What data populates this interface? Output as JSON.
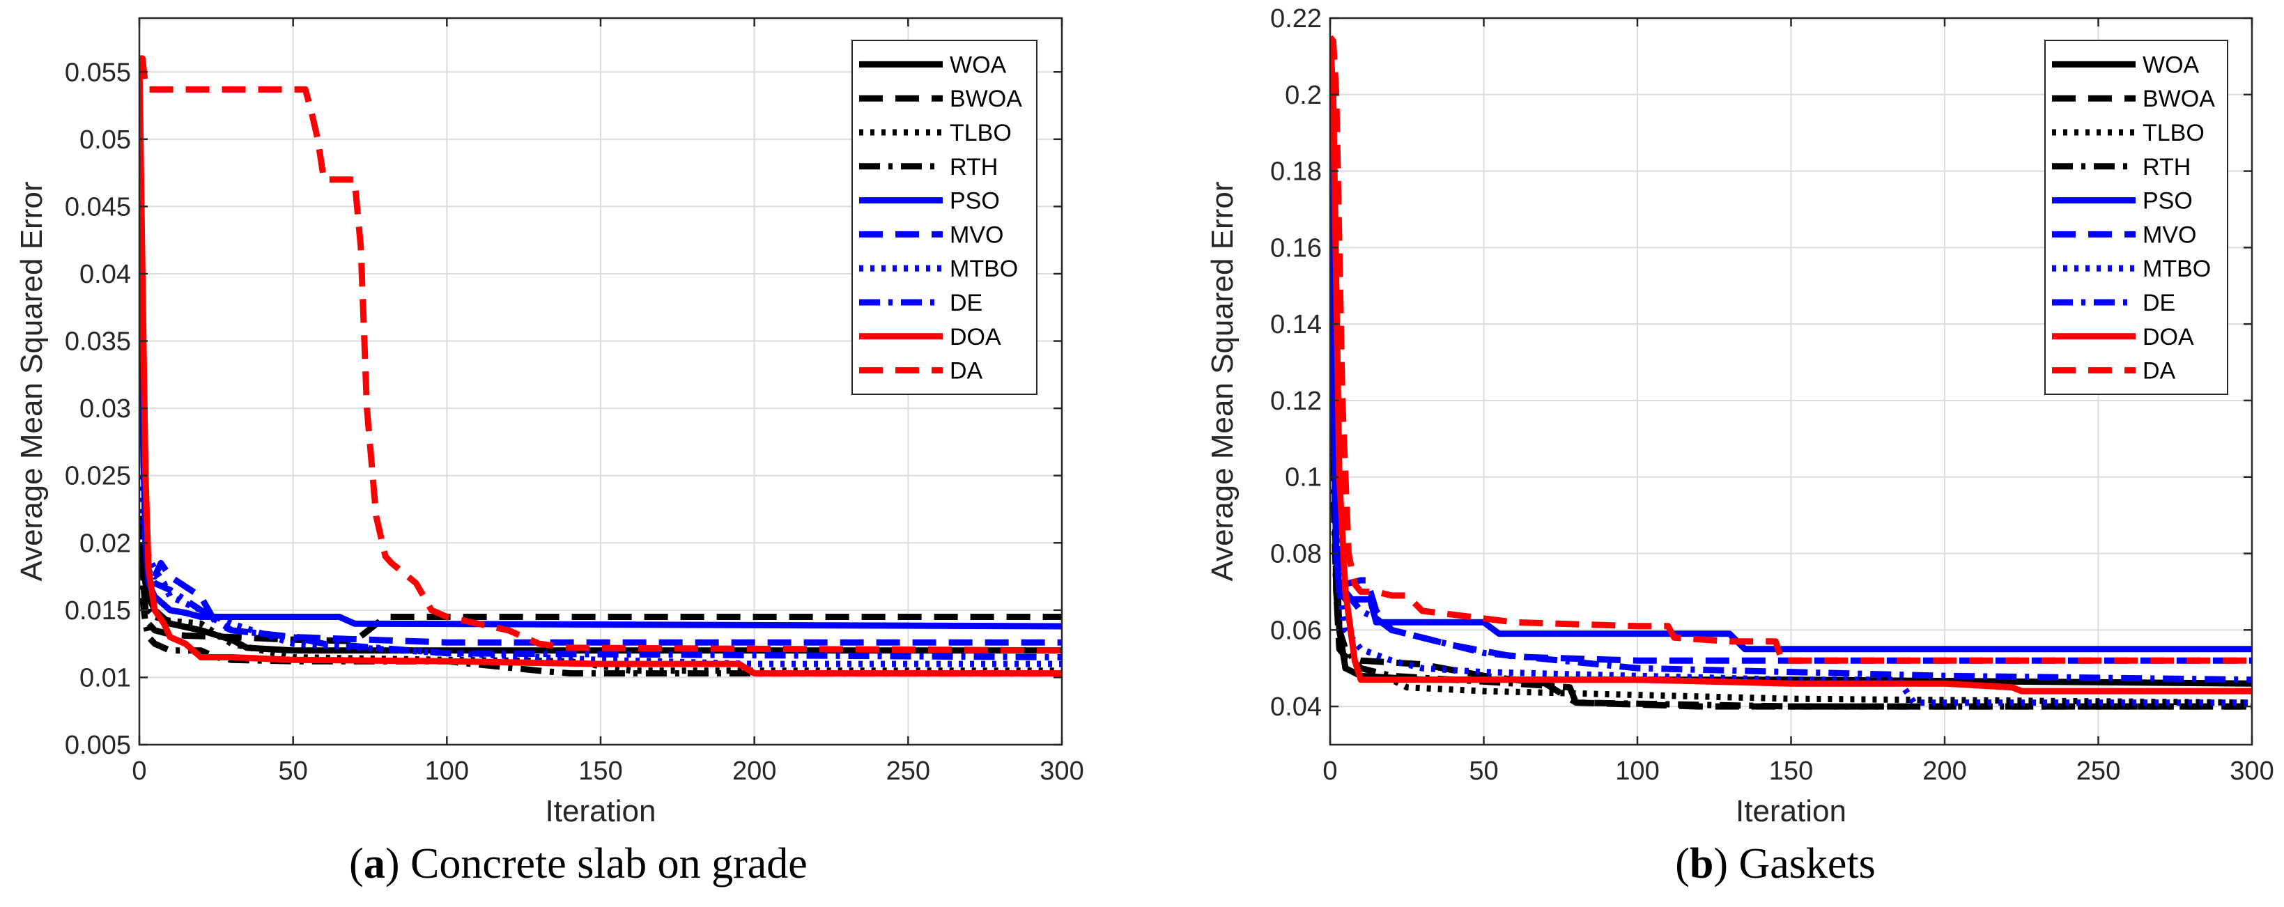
{
  "chart_data": [
    {
      "type": "line",
      "caption_letter": "a",
      "caption_open": "(",
      "caption_close": ")",
      "caption_text": " Concrete slab on grade",
      "xlabel": "Iteration",
      "ylabel": "Average Mean Squared Error",
      "xlim": [
        0,
        300
      ],
      "ylim": [
        0.005,
        0.059
      ],
      "xticks": [
        0,
        50,
        100,
        150,
        200,
        250,
        300
      ],
      "xtick_labels": [
        "0",
        "50",
        "100",
        "150",
        "200",
        "250",
        "300"
      ],
      "yticks": [
        0.005,
        0.01,
        0.015,
        0.02,
        0.025,
        0.03,
        0.035,
        0.04,
        0.045,
        0.05,
        0.055
      ],
      "ytick_labels": [
        "0.005",
        "0.01",
        "0.015",
        "0.02",
        "0.025",
        "0.03",
        "0.035",
        "0.04",
        "0.045",
        "0.05",
        "0.055"
      ],
      "grid": true,
      "legend_position": "top-right",
      "series": [
        {
          "name": "WOA",
          "color": "#000000",
          "dash": "solid",
          "x": [
            0,
            2,
            3,
            5,
            10,
            20,
            30,
            35,
            50,
            100,
            150,
            300
          ],
          "y": [
            0.02,
            0.017,
            0.016,
            0.015,
            0.014,
            0.0135,
            0.0128,
            0.0122,
            0.012,
            0.012,
            0.012,
            0.012
          ]
        },
        {
          "name": "BWOA",
          "color": "#000000",
          "dash": "dash",
          "x": [
            0,
            1,
            2,
            3,
            5,
            10,
            15,
            30,
            50,
            70,
            80,
            300
          ],
          "y": [
            0.022,
            0.018,
            0.015,
            0.014,
            0.0135,
            0.0132,
            0.0131,
            0.013,
            0.0128,
            0.0127,
            0.0145,
            0.0145
          ]
        },
        {
          "name": "TLBO",
          "color": "#000000",
          "dash": "dot",
          "x": [
            0,
            2,
            3,
            5,
            10,
            20,
            30,
            50,
            100,
            140,
            160,
            300
          ],
          "y": [
            0.02,
            0.016,
            0.015,
            0.0145,
            0.0142,
            0.014,
            0.0125,
            0.0115,
            0.0113,
            0.0112,
            0.0105,
            0.0105
          ]
        },
        {
          "name": "RTH",
          "color": "#000000",
          "dash": "dashdot",
          "x": [
            0,
            1,
            2,
            3,
            5,
            10,
            20,
            25,
            30,
            50,
            100,
            130,
            140,
            300
          ],
          "y": [
            0.019,
            0.016,
            0.014,
            0.013,
            0.0125,
            0.012,
            0.012,
            0.0115,
            0.0113,
            0.0112,
            0.0112,
            0.0105,
            0.0103,
            0.0103
          ]
        },
        {
          "name": "PSO",
          "color": "#0000ff",
          "dash": "solid",
          "x": [
            0,
            1,
            2,
            3,
            5,
            10,
            15,
            20,
            50,
            65,
            70,
            300
          ],
          "y": [
            0.05,
            0.03,
            0.02,
            0.017,
            0.016,
            0.015,
            0.0148,
            0.0145,
            0.0145,
            0.0145,
            0.014,
            0.0138
          ]
        },
        {
          "name": "MVO",
          "color": "#0000ff",
          "dash": "dash",
          "x": [
            0,
            1,
            2,
            3,
            5,
            7,
            10,
            20,
            25,
            30,
            50,
            100,
            170,
            300
          ],
          "y": [
            0.055,
            0.035,
            0.02,
            0.018,
            0.0175,
            0.0185,
            0.0175,
            0.016,
            0.014,
            0.0135,
            0.013,
            0.0126,
            0.0126,
            0.0126
          ]
        },
        {
          "name": "MTBO",
          "color": "#0000ff",
          "dash": "dot",
          "x": [
            0,
            2,
            3,
            5,
            8,
            10,
            20,
            30,
            50,
            100,
            150,
            200,
            300
          ],
          "y": [
            0.025,
            0.02,
            0.019,
            0.018,
            0.017,
            0.016,
            0.015,
            0.014,
            0.0125,
            0.0118,
            0.0113,
            0.011,
            0.011
          ]
        },
        {
          "name": "DE",
          "color": "#0000ff",
          "dash": "dashdot",
          "x": [
            0,
            1,
            2,
            3,
            5,
            10,
            20,
            30,
            50,
            60,
            100,
            300
          ],
          "y": [
            0.045,
            0.03,
            0.02,
            0.018,
            0.017,
            0.0165,
            0.015,
            0.0135,
            0.013,
            0.0125,
            0.0118,
            0.0115
          ]
        },
        {
          "name": "DOA",
          "color": "#ff0000",
          "dash": "solid",
          "x": [
            0,
            1,
            2,
            3,
            5,
            8,
            10,
            15,
            20,
            30,
            50,
            100,
            150,
            195,
            200,
            300
          ],
          "y": [
            0.056,
            0.04,
            0.025,
            0.018,
            0.015,
            0.014,
            0.013,
            0.0125,
            0.0115,
            0.0115,
            0.0113,
            0.0112,
            0.011,
            0.011,
            0.0103,
            0.0103
          ]
        },
        {
          "name": "DA",
          "color": "#ff0000",
          "dash": "dash",
          "x": [
            0,
            1,
            2,
            3,
            54,
            56,
            58,
            60,
            70,
            72,
            74,
            77,
            80,
            82,
            90,
            95,
            100,
            120,
            130,
            140,
            300
          ],
          "y": [
            0.056,
            0.056,
            0.054,
            0.0537,
            0.0537,
            0.052,
            0.05,
            0.047,
            0.047,
            0.042,
            0.03,
            0.022,
            0.019,
            0.0185,
            0.017,
            0.015,
            0.0145,
            0.0135,
            0.0125,
            0.0122,
            0.012
          ]
        }
      ]
    },
    {
      "type": "line",
      "caption_letter": "b",
      "caption_open": "(",
      "caption_close": ")",
      "caption_text": " Gaskets",
      "xlabel": "Iteration",
      "ylabel": "Average Mean Squared Error",
      "xlim": [
        0,
        300
      ],
      "ylim": [
        0.03,
        0.22
      ],
      "xticks": [
        0,
        50,
        100,
        150,
        200,
        250,
        300
      ],
      "xtick_labels": [
        "0",
        "50",
        "100",
        "150",
        "200",
        "250",
        "300"
      ],
      "yticks": [
        0.04,
        0.06,
        0.08,
        0.1,
        0.12,
        0.14,
        0.16,
        0.18,
        0.2,
        0.22
      ],
      "ytick_labels": [
        "0.04",
        "0.06",
        "0.08",
        "0.1",
        "0.12",
        "0.14",
        "0.16",
        "0.18",
        "0.2",
        "0.22"
      ],
      "grid": true,
      "legend_position": "top-right",
      "series": [
        {
          "name": "WOA",
          "color": "#000000",
          "dash": "solid",
          "x": [
            0,
            1,
            2,
            3,
            5,
            10,
            30,
            50,
            100,
            150,
            300
          ],
          "y": [
            0.16,
            0.12,
            0.08,
            0.06,
            0.05,
            0.048,
            0.047,
            0.047,
            0.047,
            0.047,
            0.046
          ]
        },
        {
          "name": "BWOA",
          "color": "#000000",
          "dash": "dash",
          "x": [
            0,
            1,
            2,
            3,
            5,
            10,
            30,
            50,
            70,
            80,
            120,
            300
          ],
          "y": [
            0.2,
            0.12,
            0.07,
            0.055,
            0.053,
            0.052,
            0.051,
            0.048,
            0.046,
            0.041,
            0.04,
            0.04
          ]
        },
        {
          "name": "TLBO",
          "color": "#000000",
          "dash": "dot",
          "x": [
            0,
            2,
            3,
            5,
            10,
            20,
            25,
            50,
            100,
            150,
            300
          ],
          "y": [
            0.15,
            0.08,
            0.06,
            0.05,
            0.048,
            0.047,
            0.045,
            0.044,
            0.043,
            0.042,
            0.041
          ]
        },
        {
          "name": "RTH",
          "color": "#000000",
          "dash": "dashdot",
          "x": [
            0,
            1,
            2,
            3,
            5,
            10,
            20,
            40,
            60,
            78,
            80,
            150,
            300
          ],
          "y": [
            0.17,
            0.1,
            0.07,
            0.06,
            0.055,
            0.05,
            0.048,
            0.047,
            0.046,
            0.045,
            0.041,
            0.04,
            0.04
          ]
        },
        {
          "name": "PSO",
          "color": "#0000ff",
          "dash": "solid",
          "x": [
            0,
            1,
            2,
            3,
            5,
            10,
            13,
            15,
            50,
            55,
            100,
            130,
            135,
            300
          ],
          "y": [
            0.21,
            0.13,
            0.08,
            0.07,
            0.068,
            0.068,
            0.068,
            0.062,
            0.062,
            0.059,
            0.059,
            0.059,
            0.055,
            0.055
          ]
        },
        {
          "name": "MVO",
          "color": "#0000ff",
          "dash": "dash",
          "x": [
            0,
            1,
            2,
            3,
            5,
            10,
            12,
            15,
            20,
            40,
            60,
            100,
            150,
            300
          ],
          "y": [
            0.205,
            0.14,
            0.09,
            0.075,
            0.072,
            0.073,
            0.073,
            0.065,
            0.06,
            0.056,
            0.053,
            0.052,
            0.052,
            0.052
          ]
        },
        {
          "name": "MTBO",
          "color": "#0000ff",
          "dash": "dot",
          "x": [
            0,
            2,
            3,
            5,
            10,
            20,
            30,
            50,
            100,
            150,
            185,
            190,
            300
          ],
          "y": [
            0.18,
            0.1,
            0.07,
            0.06,
            0.055,
            0.052,
            0.05,
            0.049,
            0.048,
            0.047,
            0.047,
            0.041,
            0.041
          ]
        },
        {
          "name": "DE",
          "color": "#0000ff",
          "dash": "dashdot",
          "x": [
            0,
            1,
            2,
            3,
            5,
            10,
            15,
            20,
            30,
            50,
            100,
            200,
            300
          ],
          "y": [
            0.19,
            0.13,
            0.09,
            0.075,
            0.07,
            0.065,
            0.063,
            0.06,
            0.058,
            0.054,
            0.05,
            0.048,
            0.047
          ]
        },
        {
          "name": "DOA",
          "color": "#ff0000",
          "dash": "solid",
          "x": [
            0,
            1,
            2,
            3,
            5,
            8,
            10,
            50,
            100,
            150,
            200,
            222,
            225,
            300
          ],
          "y": [
            0.215,
            0.2,
            0.15,
            0.1,
            0.07,
            0.052,
            0.047,
            0.047,
            0.047,
            0.046,
            0.046,
            0.045,
            0.044,
            0.044
          ]
        },
        {
          "name": "DA",
          "color": "#ff0000",
          "dash": "dash",
          "x": [
            0,
            1,
            2,
            3,
            4,
            5,
            6,
            8,
            10,
            15,
            20,
            25,
            30,
            60,
            100,
            110,
            112,
            130,
            145,
            147,
            300
          ],
          "y": [
            0.215,
            0.214,
            0.2,
            0.16,
            0.12,
            0.1,
            0.08,
            0.072,
            0.07,
            0.07,
            0.069,
            0.069,
            0.065,
            0.062,
            0.061,
            0.061,
            0.058,
            0.057,
            0.057,
            0.052,
            0.052
          ]
        }
      ]
    }
  ]
}
